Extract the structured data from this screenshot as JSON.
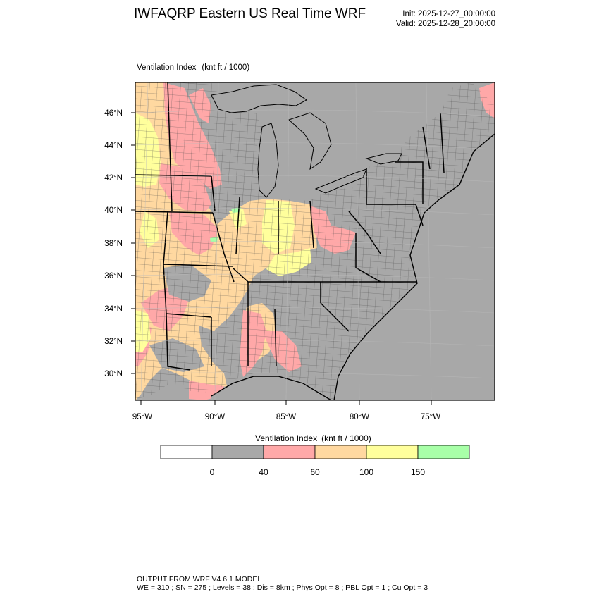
{
  "header": {
    "title": "IWFAQRP Eastern US Real Time WRF",
    "init": "Init: 2025-12-27_00:00:00",
    "valid": "Valid: 2025-12-28_20:00:00"
  },
  "field": {
    "name": "Ventilation Index",
    "units": "(knt ft / 1000)"
  },
  "map": {
    "lat_labels": [
      "46°N",
      "44°N",
      "42°N",
      "40°N",
      "38°N",
      "36°N",
      "34°N",
      "32°N",
      "30°N"
    ],
    "lon_labels": [
      "95°W",
      "90°W",
      "85°W",
      "80°W",
      "75°W"
    ],
    "colors": {
      "gray": "#a8a8a8",
      "pink": "#ffa8a8",
      "orange": "#ffd8a0",
      "yellow": "#ffff9c",
      "green": "#a8ffa8",
      "white": "#ffffff"
    }
  },
  "colorbar": {
    "title": "Ventilation Index",
    "units": "(knt ft / 1000)",
    "colors": [
      "#ffffff",
      "#a8a8a8",
      "#ffa8a8",
      "#ffd8a0",
      "#ffff9c",
      "#a8ffa8"
    ],
    "labels": [
      "0",
      "40",
      "60",
      "100",
      "150"
    ]
  },
  "footer": {
    "line1": "OUTPUT FROM WRF V4.6.1 MODEL",
    "line2": "WE = 310 ; SN = 275 ; Levels = 38 ; Dis = 8km ; Phys Opt = 8 ; PBL Opt = 1 ; Cu Opt = 3"
  }
}
